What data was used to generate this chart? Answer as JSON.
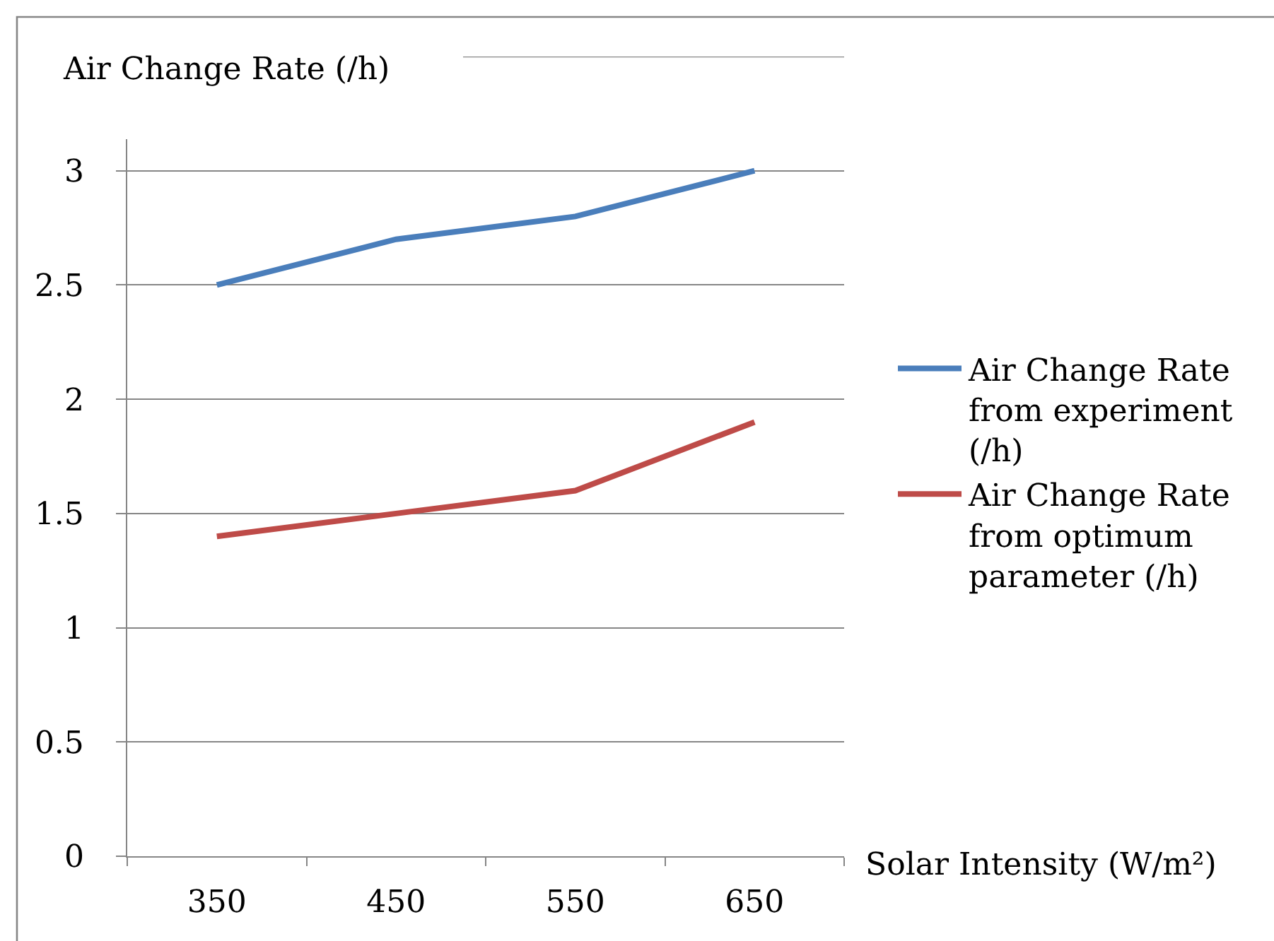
{
  "chart_data": {
    "type": "line",
    "ylabel": "Air Change Rate (/h)",
    "xlabel": "Solar Intensity (W/m²)",
    "categories": [
      "350",
      "450",
      "550",
      "650"
    ],
    "series": [
      {
        "name": "Air Change Rate from experiment (/h)",
        "color": "#4a7ebb",
        "values": [
          2.5,
          2.7,
          2.8,
          3
        ]
      },
      {
        "name": "Air Change Rate from optimum parameter (/h)",
        "color": "#be4b48",
        "values": [
          1.4,
          1.5,
          1.6,
          1.9
        ]
      }
    ],
    "ylim": [
      0,
      3.5
    ],
    "yticks": [
      0,
      0.5,
      1,
      1.5,
      2,
      2.5,
      3,
      {
        "value": 3.5,
        "label": null
      }
    ],
    "grid": "y",
    "legend": "right",
    "line_style": "solid"
  }
}
